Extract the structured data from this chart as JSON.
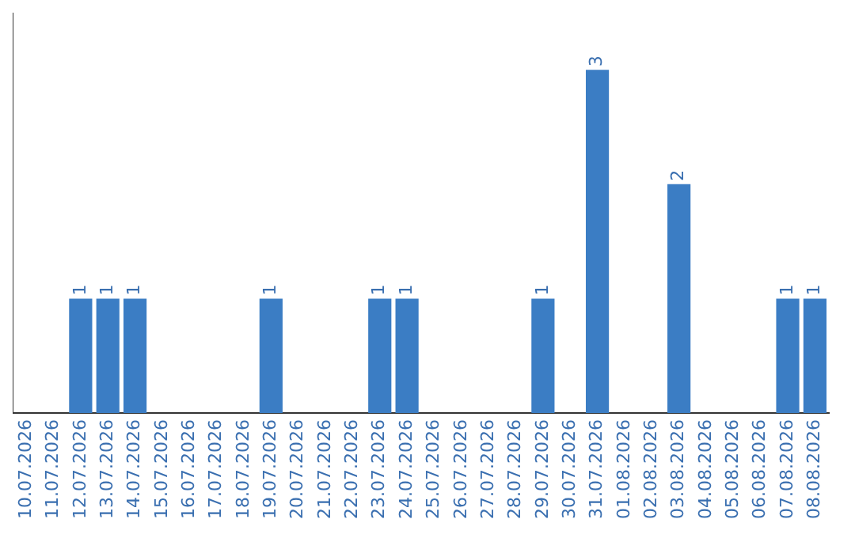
{
  "chart_data": {
    "type": "bar",
    "categories": [
      "10.07.2026",
      "11.07.2026",
      "12.07.2026",
      "13.07.2026",
      "14.07.2026",
      "15.07.2026",
      "16.07.2026",
      "17.07.2026",
      "18.07.2026",
      "19.07.2026",
      "20.07.2026",
      "21.07.2026",
      "22.07.2026",
      "23.07.2026",
      "24.07.2026",
      "25.07.2026",
      "26.07.2026",
      "27.07.2026",
      "28.07.2026",
      "29.07.2026",
      "30.07.2026",
      "31.07.2026",
      "01.08.2026",
      "02.08.2026",
      "03.08.2026",
      "04.08.2026",
      "05.08.2026",
      "06.08.2026",
      "07.08.2026",
      "08.08.2026"
    ],
    "values": [
      0,
      0,
      1,
      1,
      1,
      0,
      0,
      0,
      0,
      1,
      0,
      0,
      0,
      1,
      1,
      0,
      0,
      0,
      0,
      1,
      0,
      3,
      0,
      0,
      2,
      0,
      0,
      0,
      1,
      1
    ],
    "value_labels": [
      null,
      null,
      "1",
      "1",
      "1",
      null,
      null,
      null,
      null,
      "1",
      null,
      null,
      null,
      "1",
      "1",
      null,
      null,
      null,
      null,
      "1",
      null,
      "3",
      null,
      null,
      "2",
      null,
      null,
      null,
      "1",
      "1"
    ],
    "color": "#3b7dc4",
    "tick_labels": "x",
    "grid": false,
    "legend": false
  }
}
